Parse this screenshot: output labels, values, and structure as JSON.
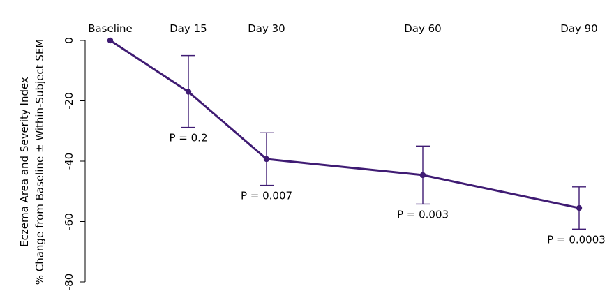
{
  "chart_data": {
    "type": "line",
    "title": "",
    "ylabel_lines": [
      "Eczema Area and Severity Index",
      "% Change from Baseline ± Within-Subject SEM"
    ],
    "xlabel": "",
    "x_axis_position": "top",
    "x_days": [
      0,
      15,
      30,
      60,
      90
    ],
    "categories": [
      "Baseline",
      "Day 15",
      "Day 30",
      "Day 60",
      "Day 90"
    ],
    "values": [
      0,
      -17,
      -39.3,
      -44.6,
      -55.5
    ],
    "error_low": [
      0,
      -28.8,
      -48,
      -54.2,
      -62.5
    ],
    "error_high": [
      0,
      -5,
      -30.6,
      -35,
      -48.5
    ],
    "p_values": [
      "",
      "P = 0.2",
      "P = 0.007",
      "P = 0.003",
      "P = 0.0003"
    ],
    "ylim": [
      -80,
      0
    ],
    "yticks": [
      0,
      -20,
      -40,
      -60,
      -80
    ],
    "ytick_labels": [
      "0",
      "-20",
      "-40",
      "-60",
      "-80"
    ],
    "line_color": "#3f1b73",
    "grid": false,
    "legend": "none"
  }
}
